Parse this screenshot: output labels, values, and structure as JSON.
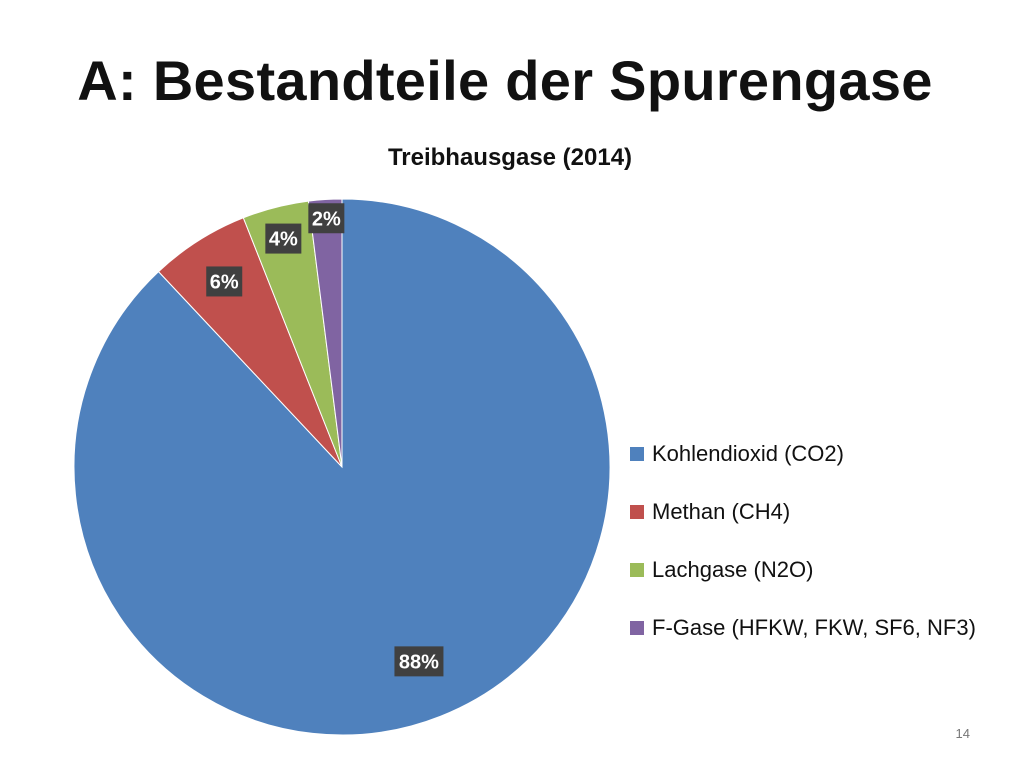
{
  "slide": {
    "title": "A: Bestandteile der Spurengase",
    "page_number": "14"
  },
  "chart_data": {
    "type": "pie",
    "title": "Treibhausgase (2014)",
    "categories": [
      "Kohlendioxid (CO2)",
      "Methan (CH4)",
      "Lachgase (N2O)",
      "F-Gase (HFKW, FKW, SF6, NF3)"
    ],
    "values": [
      88,
      6,
      4,
      2
    ],
    "data_labels": [
      "88%",
      "6%",
      "4%",
      "2%"
    ],
    "colors": [
      "#4F81BD",
      "#C0504D",
      "#9BBB59",
      "#8064A2"
    ],
    "legend_position": "right"
  }
}
